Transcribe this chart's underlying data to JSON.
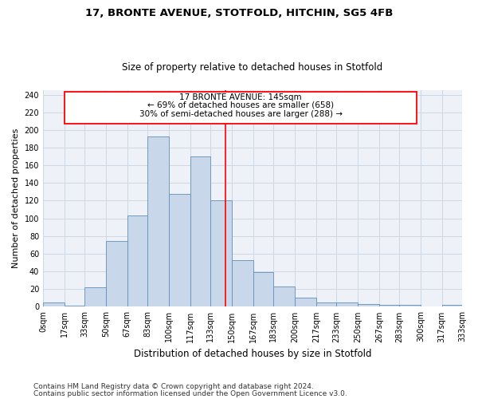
{
  "title1": "17, BRONTE AVENUE, STOTFOLD, HITCHIN, SG5 4FB",
  "title2": "Size of property relative to detached houses in Stotfold",
  "xlabel": "Distribution of detached houses by size in Stotfold",
  "ylabel": "Number of detached properties",
  "bar_color": "#c8d8ea",
  "bar_edge_color": "#6090b8",
  "annotation_text_line1": "17 BRONTE AVENUE: 145sqm",
  "annotation_text_line2": "← 69% of detached houses are smaller (658)",
  "annotation_text_line3": "30% of semi-detached houses are larger (288) →",
  "bin_edges": [
    0,
    17,
    33,
    50,
    67,
    83,
    100,
    117,
    133,
    150,
    167,
    183,
    200,
    217,
    233,
    250,
    267,
    283,
    300,
    317,
    333
  ],
  "bin_labels": [
    "0sqm",
    "17sqm",
    "33sqm",
    "50sqm",
    "67sqm",
    "83sqm",
    "100sqm",
    "117sqm",
    "133sqm",
    "150sqm",
    "167sqm",
    "183sqm",
    "200sqm",
    "217sqm",
    "233sqm",
    "250sqm",
    "267sqm",
    "283sqm",
    "300sqm",
    "317sqm",
    "333sqm"
  ],
  "bar_heights": [
    5,
    1,
    22,
    74,
    103,
    193,
    128,
    170,
    120,
    53,
    39,
    23,
    10,
    5,
    5,
    3,
    2,
    2,
    0,
    2
  ],
  "ylim": [
    0,
    245
  ],
  "yticks": [
    0,
    20,
    40,
    60,
    80,
    100,
    120,
    140,
    160,
    180,
    200,
    220,
    240
  ],
  "footer_line1": "Contains HM Land Registry data © Crown copyright and database right 2024.",
  "footer_line2": "Contains public sector information licensed under the Open Government Licence v3.0.",
  "grid_color": "#ccd8e4",
  "bg_color": "#eef2f8",
  "title1_fontsize": 9.5,
  "title2_fontsize": 8.5,
  "xlabel_fontsize": 8.5,
  "ylabel_fontsize": 8,
  "tick_fontsize": 7,
  "annot_fontsize": 7.5,
  "footer_fontsize": 6.5
}
